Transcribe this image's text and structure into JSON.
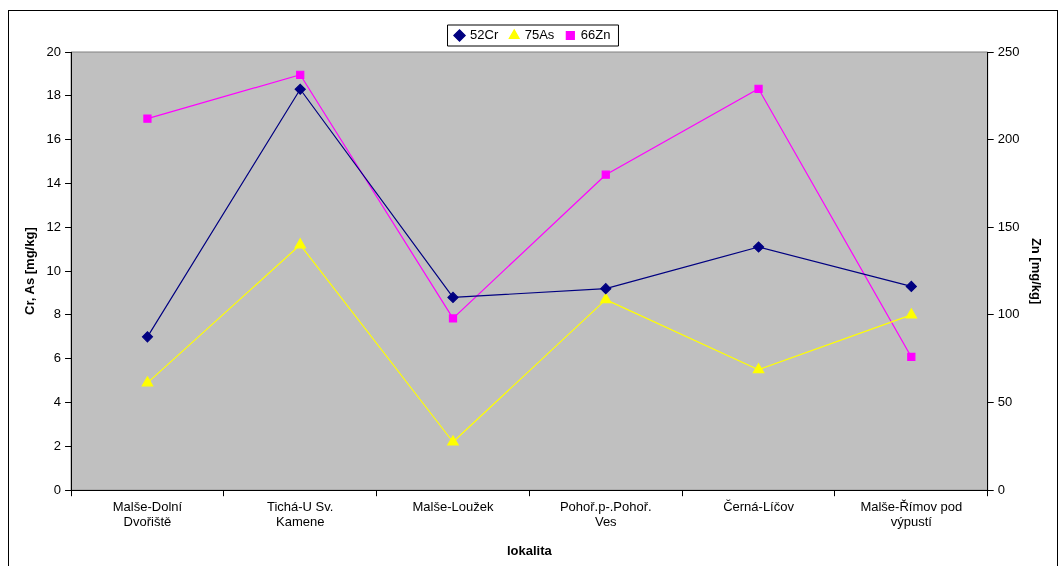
{
  "chart_data": {
    "type": "line",
    "xlabel": "lokalita",
    "ylabel": "Cr, As [mg/kg]",
    "y2label": "Zn [mg/kg]",
    "categories": [
      "Malše-Dolní Dvořiště",
      "Tichá-U Sv. Kamene",
      "Malše-Loužek",
      "Pohoř.p-.Pohoř. Ves",
      "Černá-Líčov",
      "Malše-Římov pod výpustí"
    ],
    "series": [
      {
        "name": "52Cr",
        "color": "#000080",
        "marker": "diamond",
        "values": [
          7.0,
          18.3,
          8.8,
          9.2,
          11.1,
          9.3
        ]
      },
      {
        "name": "75As",
        "color": "#ffff00",
        "marker": "triangle",
        "values": [
          4.9,
          11.2,
          2.2,
          8.7,
          5.5,
          8.0
        ]
      },
      {
        "name": "66Zn",
        "color": "#ff00ff",
        "marker": "square",
        "axis": "y2",
        "values": [
          212,
          237,
          98,
          180,
          229,
          76
        ]
      }
    ],
    "ylim": [
      0,
      20
    ],
    "yticks": [
      0,
      2,
      4,
      6,
      8,
      10,
      12,
      14,
      16,
      18,
      20
    ],
    "y2lim": [
      0,
      250
    ],
    "y2ticks": [
      0,
      50,
      100,
      150,
      200,
      250
    ],
    "grid": false,
    "legend": "top",
    "line_style": "solid"
  }
}
